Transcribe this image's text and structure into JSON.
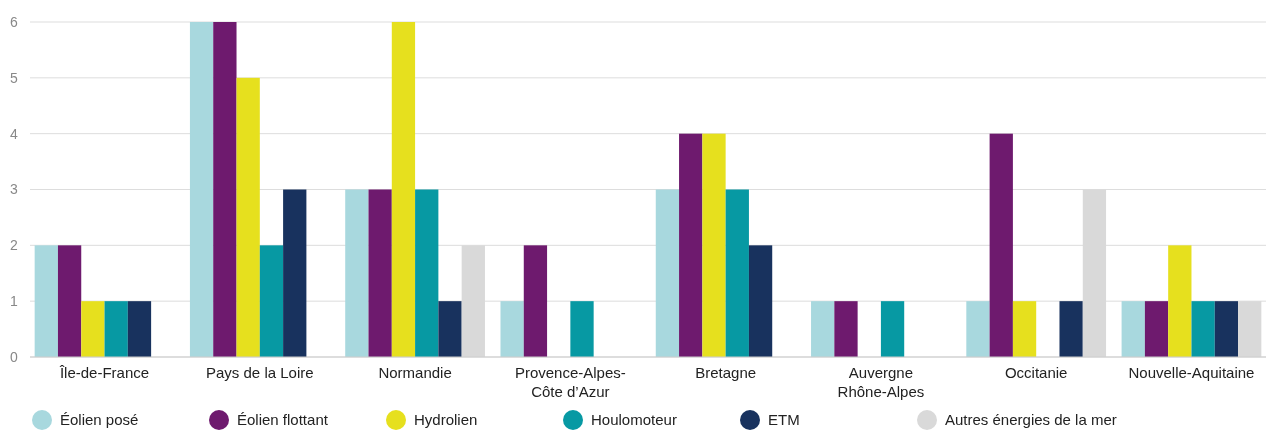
{
  "chart_data": {
    "type": "bar",
    "categories": [
      "Île-de-France",
      "Pays de la Loire",
      "Normandie",
      "Provence-Alpes-\nCôte d’Azur",
      "Bretagne",
      "Auvergne\nRhône-Alpes",
      "Occitanie",
      "Nouvelle-Aquitaine"
    ],
    "series": [
      {
        "name": "Éolien posé",
        "color": "#a8d8de",
        "values": [
          2,
          6,
          3,
          1,
          3,
          1,
          1,
          1
        ]
      },
      {
        "name": "Éolien flottant",
        "color": "#6e1a6e",
        "values": [
          2,
          6,
          3,
          2,
          4,
          1,
          4,
          1
        ]
      },
      {
        "name": "Hydrolien",
        "color": "#e6e01e",
        "values": [
          1,
          5,
          6,
          null,
          4,
          null,
          1,
          2
        ]
      },
      {
        "name": "Houlomoteur",
        "color": "#0799a3",
        "values": [
          1,
          2,
          3,
          1,
          3,
          1,
          null,
          1
        ]
      },
      {
        "name": "ETM",
        "color": "#18325e",
        "values": [
          1,
          3,
          1,
          null,
          2,
          null,
          1,
          1
        ]
      },
      {
        "name": "Autres énergies de la mer",
        "color": "#d9d9d9",
        "values": [
          null,
          null,
          2,
          null,
          null,
          null,
          3,
          1
        ]
      }
    ],
    "ylim": [
      0,
      6
    ],
    "yticks": [
      0,
      1,
      2,
      3,
      4,
      5,
      6
    ],
    "grid": "y",
    "legend": "bottom"
  }
}
